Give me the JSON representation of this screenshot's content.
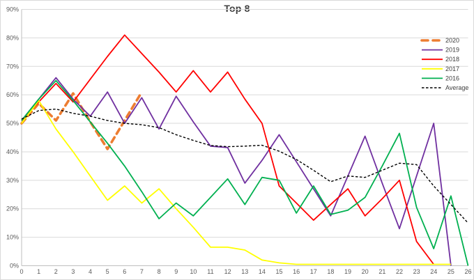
{
  "chart_data": {
    "type": "line",
    "title": "Top 8",
    "xlabel": "",
    "ylabel": "",
    "xlim": [
      0,
      26
    ],
    "ylim": [
      0,
      90
    ],
    "grid": "horizontal",
    "legend_position": "right",
    "yticks": [
      "0%",
      "10%",
      "20%",
      "30%",
      "40%",
      "50%",
      "60%",
      "70%",
      "80%",
      "90%"
    ],
    "xticks": [
      0,
      1,
      2,
      3,
      4,
      5,
      6,
      7,
      8,
      9,
      10,
      11,
      12,
      13,
      14,
      15,
      16,
      17,
      18,
      19,
      20,
      21,
      22,
      23,
      24,
      25,
      26
    ],
    "axis_tick_color": "#595959",
    "gridline_color": "#d9d9d9",
    "axis_line_color": "#bfbfbf",
    "series": [
      {
        "name": "2020",
        "color": "#ED7D31",
        "style": "thick-dashed",
        "x_start": 0,
        "values": [
          50,
          57,
          51,
          60.5,
          50.5,
          41,
          51,
          61
        ]
      },
      {
        "name": "2019",
        "color": "#7030A0",
        "style": "solid",
        "x_start": 0,
        "values": [
          51,
          58.5,
          66,
          58.5,
          52.5,
          61,
          50,
          59,
          48,
          59.5,
          50.5,
          42,
          41.5,
          29,
          37,
          46,
          36.5,
          27,
          17.5,
          31.5,
          45.5,
          29,
          13,
          31.5,
          50,
          0
        ]
      },
      {
        "name": "2018",
        "color": "#FF0000",
        "style": "solid",
        "x_start": 0,
        "values": [
          51,
          57.5,
          64,
          57.5,
          65.5,
          73.5,
          81,
          74.5,
          68,
          61,
          68.5,
          61,
          68,
          58.5,
          50,
          28,
          22,
          16,
          21.5,
          27,
          17.5,
          23.5,
          30,
          8.5,
          0.5
        ]
      },
      {
        "name": "2017",
        "color": "#FFFF00",
        "style": "solid",
        "x_start": 0,
        "values": [
          50,
          58,
          48,
          40,
          31.5,
          23,
          28,
          22,
          27,
          20,
          13.5,
          6.5,
          6.5,
          5.5,
          2,
          1,
          0.5,
          0.5,
          0.5,
          0.5,
          0.5,
          0.5,
          0.5,
          0.5,
          0.5,
          0.5
        ]
      },
      {
        "name": "2016",
        "color": "#00B050",
        "style": "solid",
        "x_start": 0,
        "values": [
          51,
          58.5,
          65,
          58,
          50.5,
          43,
          35,
          26,
          16.5,
          22,
          17.5,
          24,
          30.5,
          21.5,
          31,
          30,
          18.5,
          28,
          18,
          19.5,
          24,
          35,
          46.5,
          20.5,
          6,
          24.5,
          0
        ]
      },
      {
        "name": "Average",
        "color": "#000000",
        "style": "thin-dashed",
        "x_start": 0,
        "values": [
          51.5,
          54.5,
          55,
          53.5,
          52.5,
          51,
          50,
          49.5,
          48.5,
          46,
          44,
          42.2,
          41.8,
          42,
          42.3,
          40.2,
          37.3,
          33.5,
          29.5,
          31.5,
          31,
          33.5,
          36,
          35.5,
          28,
          21.5,
          15
        ]
      }
    ]
  }
}
